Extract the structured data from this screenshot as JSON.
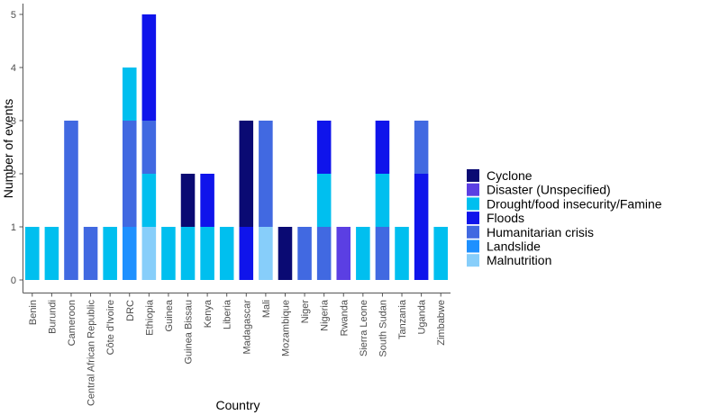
{
  "chart_data": {
    "type": "bar",
    "stacked": true,
    "xlabel": "Country",
    "ylabel": "Number of events",
    "ylim": [
      0,
      5.15
    ],
    "yticks": [
      0,
      1,
      2,
      3,
      4,
      5
    ],
    "grid": false,
    "legend_position": "right",
    "categories": [
      "Benin",
      "Burundi",
      "Cameroon",
      "Central African Republic",
      "Côte d'Ivoire",
      "DRC",
      "Ethiopia",
      "Guinea",
      "Guinea Bissau",
      "Kenya",
      "Liberia",
      "Madagascar",
      "Mali",
      "Mozambique",
      "Niger",
      "Nigeria",
      "Rwanda",
      "Sierra Leone",
      "South Sudan",
      "Tanzania",
      "Uganda",
      "Zimbabwe"
    ],
    "series": [
      {
        "name": "Cyclone",
        "color": "#0a0a73",
        "values": [
          0,
          0,
          0,
          0,
          0,
          0,
          0,
          0,
          1,
          0,
          0,
          2,
          0,
          1,
          0,
          0,
          0,
          0,
          0,
          0,
          0,
          0
        ]
      },
      {
        "name": "Disaster (Unspecified)",
        "color": "#5b3fe3",
        "values": [
          0,
          0,
          0,
          0,
          0,
          0,
          0,
          0,
          0,
          0,
          0,
          0,
          0,
          0,
          0,
          0,
          1,
          0,
          0,
          0,
          0,
          0
        ]
      },
      {
        "name": "Drought/food insecurity/Famine",
        "color": "#00bfef",
        "values": [
          1,
          1,
          0,
          0,
          1,
          1,
          1,
          1,
          1,
          1,
          1,
          0,
          0,
          0,
          0,
          1,
          0,
          1,
          1,
          1,
          0,
          1
        ]
      },
      {
        "name": "Floods",
        "color": "#0f14eb",
        "values": [
          0,
          0,
          0,
          0,
          0,
          0,
          2,
          0,
          0,
          1,
          0,
          1,
          0,
          0,
          0,
          1,
          0,
          0,
          1,
          0,
          2,
          0
        ]
      },
      {
        "name": "Humanitarian crisis",
        "color": "#4169e1",
        "values": [
          0,
          0,
          3,
          1,
          0,
          2,
          1,
          0,
          0,
          0,
          0,
          0,
          2,
          0,
          1,
          1,
          0,
          0,
          1,
          0,
          1,
          0
        ]
      },
      {
        "name": "Landslide",
        "color": "#1e90ff",
        "values": [
          0,
          0,
          0,
          0,
          0,
          1,
          0,
          0,
          0,
          0,
          0,
          0,
          0,
          0,
          0,
          0,
          0,
          0,
          0,
          0,
          0,
          0
        ]
      },
      {
        "name": "Malnutrition",
        "color": "#87cefa",
        "values": [
          0,
          0,
          0,
          0,
          0,
          0,
          1,
          0,
          0,
          0,
          0,
          0,
          1,
          0,
          0,
          0,
          0,
          0,
          0,
          0,
          0,
          0
        ]
      }
    ],
    "stack_order": [
      [
        "Drought/food insecurity/Famine"
      ],
      [
        "Drought/food insecurity/Famine"
      ],
      [
        "Humanitarian crisis"
      ],
      [
        "Humanitarian crisis"
      ],
      [
        "Drought/food insecurity/Famine"
      ],
      [
        "Landslide",
        "Humanitarian crisis",
        "Drought/food insecurity/Famine"
      ],
      [
        "Malnutrition",
        "Drought/food insecurity/Famine",
        "Humanitarian crisis",
        "Floods"
      ],
      [
        "Drought/food insecurity/Famine"
      ],
      [
        "Drought/food insecurity/Famine",
        "Cyclone"
      ],
      [
        "Drought/food insecurity/Famine",
        "Floods"
      ],
      [
        "Drought/food insecurity/Famine"
      ],
      [
        "Floods",
        "Cyclone"
      ],
      [
        "Malnutrition",
        "Humanitarian crisis"
      ],
      [
        "Cyclone"
      ],
      [
        "Humanitarian crisis"
      ],
      [
        "Humanitarian crisis",
        "Drought/food insecurity/Famine",
        "Floods"
      ],
      [
        "Disaster (Unspecified)"
      ],
      [
        "Drought/food insecurity/Famine"
      ],
      [
        "Humanitarian crisis",
        "Drought/food insecurity/Famine",
        "Floods"
      ],
      [
        "Drought/food insecurity/Famine"
      ],
      [
        "Floods",
        "Humanitarian crisis"
      ],
      [
        "Drought/food insecurity/Famine"
      ]
    ]
  }
}
